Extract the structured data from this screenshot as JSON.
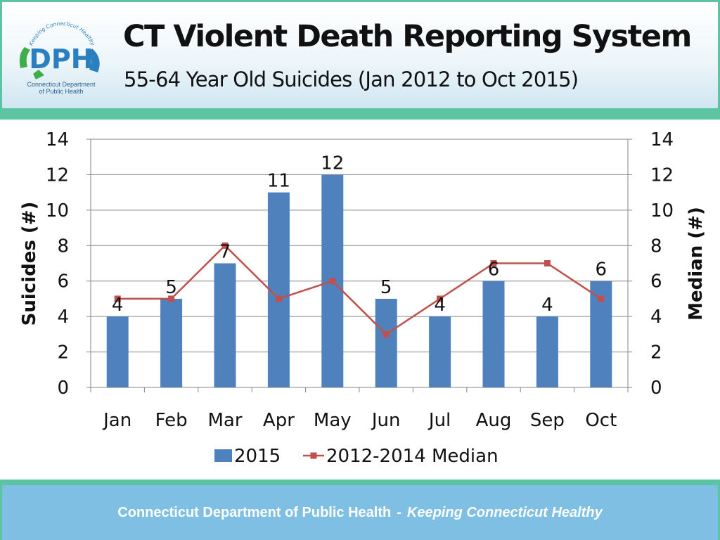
{
  "header": {
    "title": "CT Violent Death Reporting System",
    "subtitle": "55-64 Year Old Suicides (Jan 2012 to Oct 2015)",
    "logo": {
      "text": "DPH",
      "arc_text": "Keeping Connecticut Healthy",
      "caption_line1": "Connecticut Department",
      "caption_line2": "of Public Health"
    }
  },
  "chart_data": {
    "type": "bar",
    "categories": [
      "Jan",
      "Feb",
      "Mar",
      "Apr",
      "May",
      "Jun",
      "Jul",
      "Aug",
      "Sep",
      "Oct"
    ],
    "series": [
      {
        "name": "2015",
        "type": "bar",
        "axis": "left",
        "values": [
          4,
          5,
          7,
          11,
          12,
          5,
          4,
          6,
          4,
          6
        ],
        "data_labels": [
          4,
          5,
          7,
          11,
          12,
          5,
          4,
          6,
          4,
          6
        ]
      },
      {
        "name": "2012-2014 Median",
        "type": "line",
        "axis": "right",
        "values": [
          5,
          5,
          8,
          5,
          6,
          3,
          5,
          7,
          7,
          5
        ]
      }
    ],
    "ylabel": "Suicides (#)",
    "y2label": "Median (#)",
    "ylim": [
      0,
      14
    ],
    "y2lim": [
      0,
      14
    ],
    "yticks": [
      0,
      2,
      4,
      6,
      8,
      10,
      12,
      14
    ],
    "grid": true,
    "legend": "bottom",
    "colors": {
      "bar": "#4f81bd",
      "line": "#c0504d",
      "grid": "#868686"
    }
  },
  "footer": {
    "org": "Connecticut Department of Public Health",
    "separator": "-",
    "tagline": "Keeping Connecticut Healthy"
  },
  "colors": {
    "frame": "#5cc4a0",
    "footer_bg": "#7fbfe3",
    "logo_blue": "#2a7fc1",
    "logo_green": "#3fae49"
  }
}
